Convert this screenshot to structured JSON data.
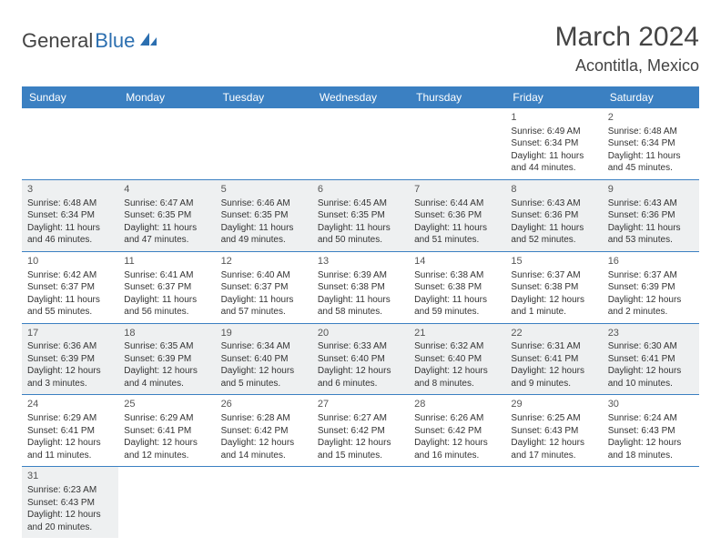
{
  "colors": {
    "header_bg": "#3b80c2",
    "header_text": "#ffffff",
    "alt_row_bg": "#eef0f1",
    "border": "#3b80c2",
    "text": "#333333",
    "title": "#444444",
    "logo_gray": "#444444",
    "logo_blue": "#2c6fb0"
  },
  "logo": {
    "part1": "General",
    "part2": "Blue"
  },
  "title": "March 2024",
  "location": "Acontitla, Mexico",
  "weekdays": [
    "Sunday",
    "Monday",
    "Tuesday",
    "Wednesday",
    "Thursday",
    "Friday",
    "Saturday"
  ],
  "weeks": [
    [
      null,
      null,
      null,
      null,
      null,
      {
        "d": "1",
        "sr": "Sunrise: 6:49 AM",
        "ss": "Sunset: 6:34 PM",
        "dl1": "Daylight: 11 hours",
        "dl2": "and 44 minutes."
      },
      {
        "d": "2",
        "sr": "Sunrise: 6:48 AM",
        "ss": "Sunset: 6:34 PM",
        "dl1": "Daylight: 11 hours",
        "dl2": "and 45 minutes."
      }
    ],
    [
      {
        "d": "3",
        "sr": "Sunrise: 6:48 AM",
        "ss": "Sunset: 6:34 PM",
        "dl1": "Daylight: 11 hours",
        "dl2": "and 46 minutes."
      },
      {
        "d": "4",
        "sr": "Sunrise: 6:47 AM",
        "ss": "Sunset: 6:35 PM",
        "dl1": "Daylight: 11 hours",
        "dl2": "and 47 minutes."
      },
      {
        "d": "5",
        "sr": "Sunrise: 6:46 AM",
        "ss": "Sunset: 6:35 PM",
        "dl1": "Daylight: 11 hours",
        "dl2": "and 49 minutes."
      },
      {
        "d": "6",
        "sr": "Sunrise: 6:45 AM",
        "ss": "Sunset: 6:35 PM",
        "dl1": "Daylight: 11 hours",
        "dl2": "and 50 minutes."
      },
      {
        "d": "7",
        "sr": "Sunrise: 6:44 AM",
        "ss": "Sunset: 6:36 PM",
        "dl1": "Daylight: 11 hours",
        "dl2": "and 51 minutes."
      },
      {
        "d": "8",
        "sr": "Sunrise: 6:43 AM",
        "ss": "Sunset: 6:36 PM",
        "dl1": "Daylight: 11 hours",
        "dl2": "and 52 minutes."
      },
      {
        "d": "9",
        "sr": "Sunrise: 6:43 AM",
        "ss": "Sunset: 6:36 PM",
        "dl1": "Daylight: 11 hours",
        "dl2": "and 53 minutes."
      }
    ],
    [
      {
        "d": "10",
        "sr": "Sunrise: 6:42 AM",
        "ss": "Sunset: 6:37 PM",
        "dl1": "Daylight: 11 hours",
        "dl2": "and 55 minutes."
      },
      {
        "d": "11",
        "sr": "Sunrise: 6:41 AM",
        "ss": "Sunset: 6:37 PM",
        "dl1": "Daylight: 11 hours",
        "dl2": "and 56 minutes."
      },
      {
        "d": "12",
        "sr": "Sunrise: 6:40 AM",
        "ss": "Sunset: 6:37 PM",
        "dl1": "Daylight: 11 hours",
        "dl2": "and 57 minutes."
      },
      {
        "d": "13",
        "sr": "Sunrise: 6:39 AM",
        "ss": "Sunset: 6:38 PM",
        "dl1": "Daylight: 11 hours",
        "dl2": "and 58 minutes."
      },
      {
        "d": "14",
        "sr": "Sunrise: 6:38 AM",
        "ss": "Sunset: 6:38 PM",
        "dl1": "Daylight: 11 hours",
        "dl2": "and 59 minutes."
      },
      {
        "d": "15",
        "sr": "Sunrise: 6:37 AM",
        "ss": "Sunset: 6:38 PM",
        "dl1": "Daylight: 12 hours",
        "dl2": "and 1 minute."
      },
      {
        "d": "16",
        "sr": "Sunrise: 6:37 AM",
        "ss": "Sunset: 6:39 PM",
        "dl1": "Daylight: 12 hours",
        "dl2": "and 2 minutes."
      }
    ],
    [
      {
        "d": "17",
        "sr": "Sunrise: 6:36 AM",
        "ss": "Sunset: 6:39 PM",
        "dl1": "Daylight: 12 hours",
        "dl2": "and 3 minutes."
      },
      {
        "d": "18",
        "sr": "Sunrise: 6:35 AM",
        "ss": "Sunset: 6:39 PM",
        "dl1": "Daylight: 12 hours",
        "dl2": "and 4 minutes."
      },
      {
        "d": "19",
        "sr": "Sunrise: 6:34 AM",
        "ss": "Sunset: 6:40 PM",
        "dl1": "Daylight: 12 hours",
        "dl2": "and 5 minutes."
      },
      {
        "d": "20",
        "sr": "Sunrise: 6:33 AM",
        "ss": "Sunset: 6:40 PM",
        "dl1": "Daylight: 12 hours",
        "dl2": "and 6 minutes."
      },
      {
        "d": "21",
        "sr": "Sunrise: 6:32 AM",
        "ss": "Sunset: 6:40 PM",
        "dl1": "Daylight: 12 hours",
        "dl2": "and 8 minutes."
      },
      {
        "d": "22",
        "sr": "Sunrise: 6:31 AM",
        "ss": "Sunset: 6:41 PM",
        "dl1": "Daylight: 12 hours",
        "dl2": "and 9 minutes."
      },
      {
        "d": "23",
        "sr": "Sunrise: 6:30 AM",
        "ss": "Sunset: 6:41 PM",
        "dl1": "Daylight: 12 hours",
        "dl2": "and 10 minutes."
      }
    ],
    [
      {
        "d": "24",
        "sr": "Sunrise: 6:29 AM",
        "ss": "Sunset: 6:41 PM",
        "dl1": "Daylight: 12 hours",
        "dl2": "and 11 minutes."
      },
      {
        "d": "25",
        "sr": "Sunrise: 6:29 AM",
        "ss": "Sunset: 6:41 PM",
        "dl1": "Daylight: 12 hours",
        "dl2": "and 12 minutes."
      },
      {
        "d": "26",
        "sr": "Sunrise: 6:28 AM",
        "ss": "Sunset: 6:42 PM",
        "dl1": "Daylight: 12 hours",
        "dl2": "and 14 minutes."
      },
      {
        "d": "27",
        "sr": "Sunrise: 6:27 AM",
        "ss": "Sunset: 6:42 PM",
        "dl1": "Daylight: 12 hours",
        "dl2": "and 15 minutes."
      },
      {
        "d": "28",
        "sr": "Sunrise: 6:26 AM",
        "ss": "Sunset: 6:42 PM",
        "dl1": "Daylight: 12 hours",
        "dl2": "and 16 minutes."
      },
      {
        "d": "29",
        "sr": "Sunrise: 6:25 AM",
        "ss": "Sunset: 6:43 PM",
        "dl1": "Daylight: 12 hours",
        "dl2": "and 17 minutes."
      },
      {
        "d": "30",
        "sr": "Sunrise: 6:24 AM",
        "ss": "Sunset: 6:43 PM",
        "dl1": "Daylight: 12 hours",
        "dl2": "and 18 minutes."
      }
    ],
    [
      {
        "d": "31",
        "sr": "Sunrise: 6:23 AM",
        "ss": "Sunset: 6:43 PM",
        "dl1": "Daylight: 12 hours",
        "dl2": "and 20 minutes."
      },
      null,
      null,
      null,
      null,
      null,
      null
    ]
  ]
}
